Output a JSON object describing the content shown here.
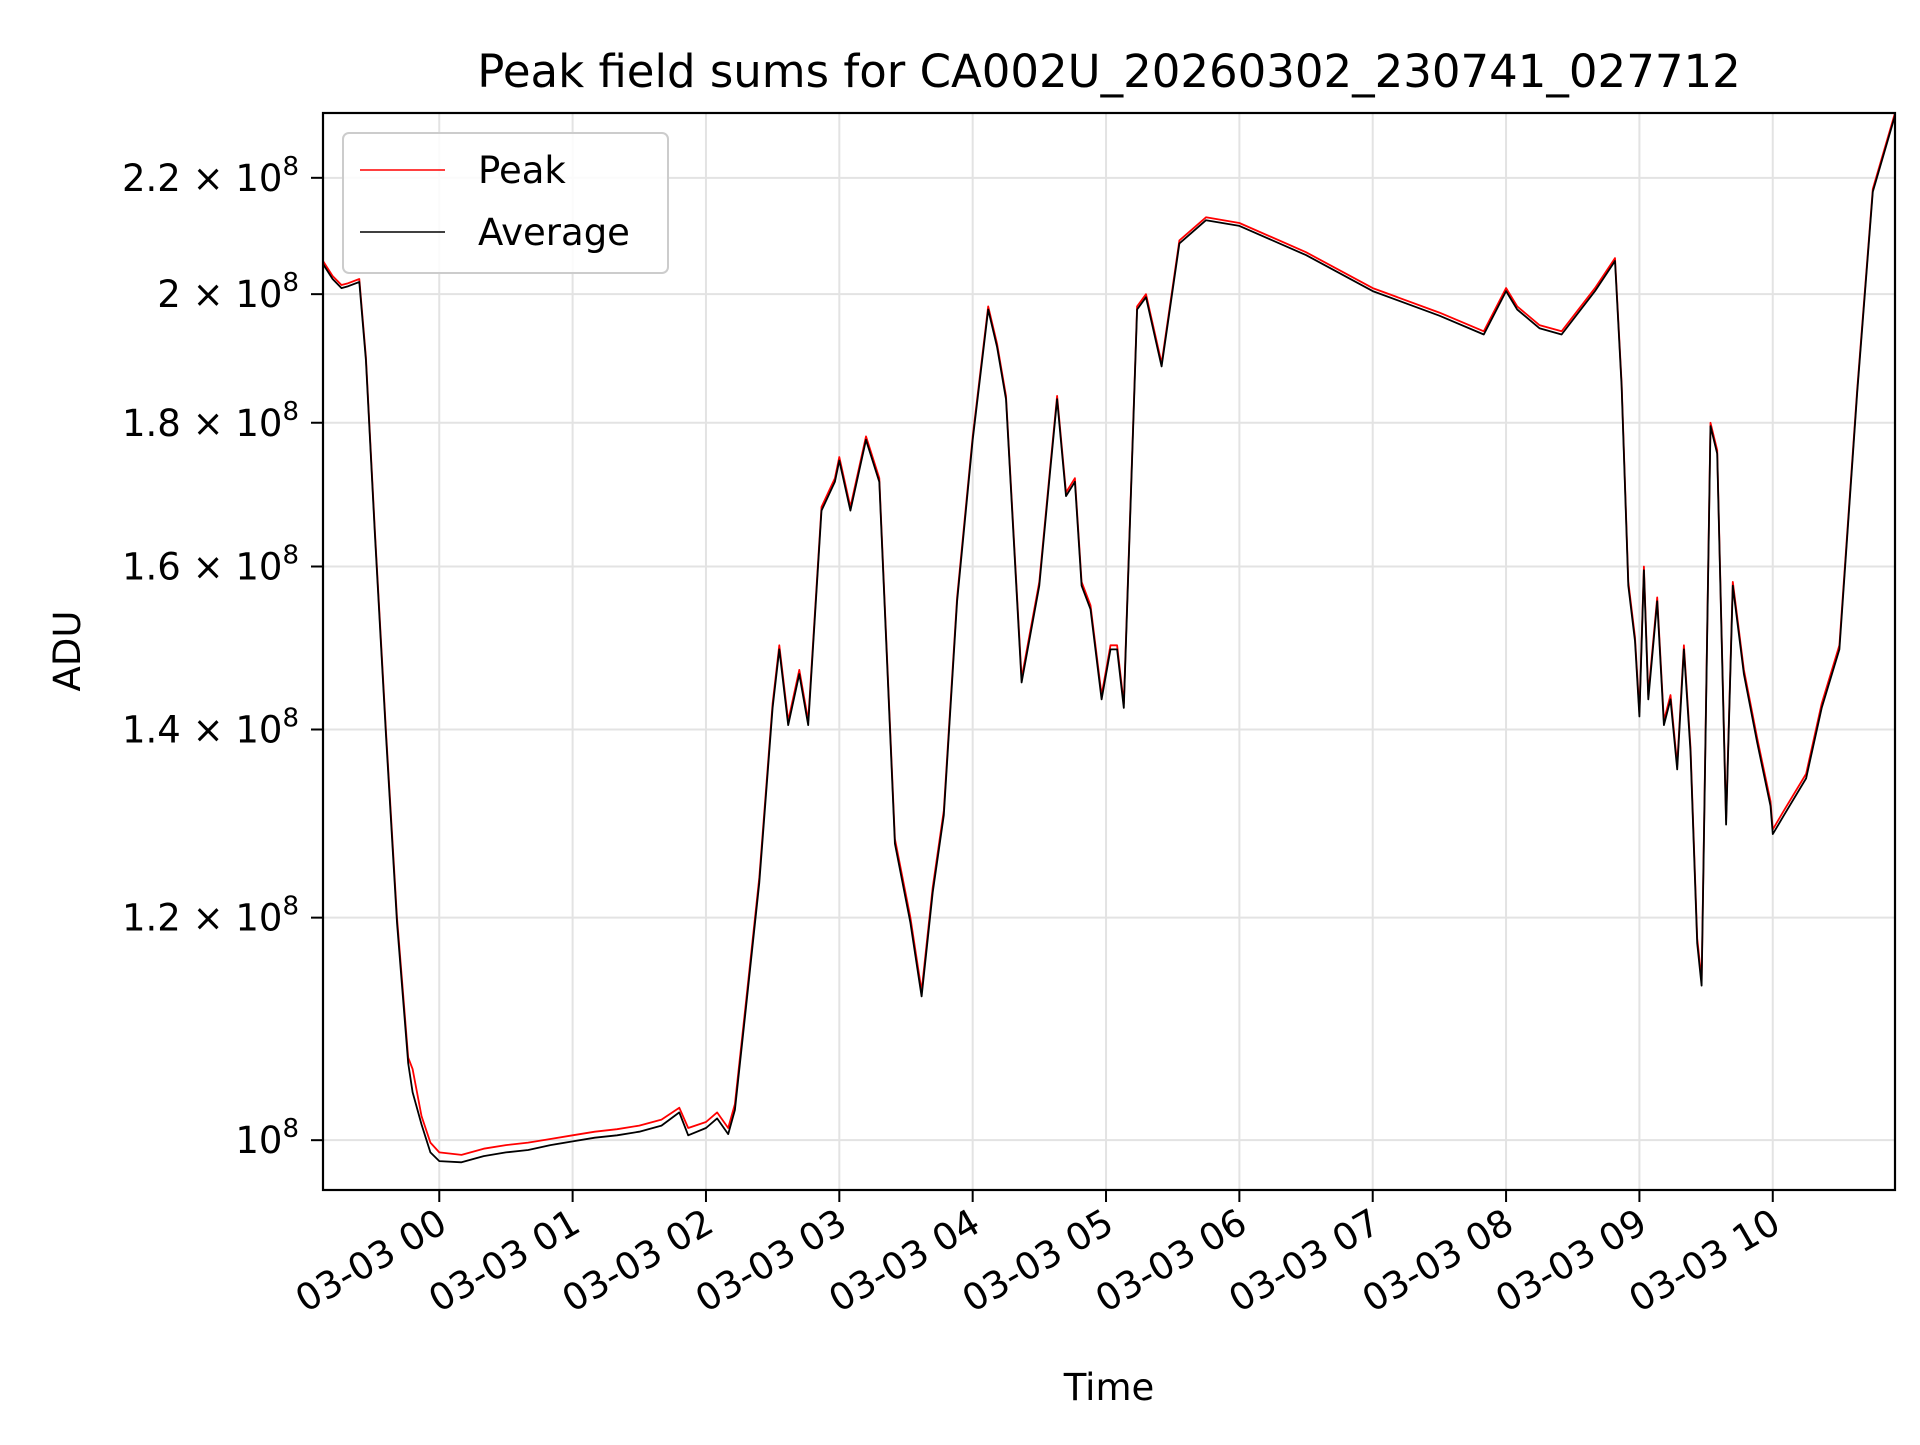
{
  "chart_data": {
    "type": "line",
    "title": "Peak field sums for CA002U_20260302_230741_027712",
    "xlabel": "Time",
    "ylabel": "ADU",
    "y_scale": "log",
    "ylim": [
      96000000,
      232000000
    ],
    "xlim": [
      "2026-03-02 23:07:41",
      "2026-03-03 10:55:00"
    ],
    "grid": true,
    "legend_position": "top-left",
    "x_ticks": [
      {
        "t": "2026-03-03 00:00",
        "label": "03-03 00"
      },
      {
        "t": "2026-03-03 01:00",
        "label": "03-03 01"
      },
      {
        "t": "2026-03-03 02:00",
        "label": "03-03 02"
      },
      {
        "t": "2026-03-03 03:00",
        "label": "03-03 03"
      },
      {
        "t": "2026-03-03 04:00",
        "label": "03-03 04"
      },
      {
        "t": "2026-03-03 05:00",
        "label": "03-03 05"
      },
      {
        "t": "2026-03-03 06:00",
        "label": "03-03 06"
      },
      {
        "t": "2026-03-03 07:00",
        "label": "03-03 07"
      },
      {
        "t": "2026-03-03 08:00",
        "label": "03-03 08"
      },
      {
        "t": "2026-03-03 09:00",
        "label": "03-03 09"
      },
      {
        "t": "2026-03-03 10:00",
        "label": "03-03 10"
      }
    ],
    "y_ticks": [
      {
        "v": 100000000,
        "mant": "",
        "label": "10",
        "exp": "8"
      },
      {
        "v": 120000000,
        "mant": "1.2 × ",
        "label": "10",
        "exp": "8"
      },
      {
        "v": 140000000,
        "mant": "1.4 × ",
        "label": "10",
        "exp": "8"
      },
      {
        "v": 160000000,
        "mant": "1.6 × ",
        "label": "10",
        "exp": "8"
      },
      {
        "v": 180000000,
        "mant": "1.8 × ",
        "label": "10",
        "exp": "8"
      },
      {
        "v": 200000000,
        "mant": "2 × ",
        "label": "10",
        "exp": "8"
      },
      {
        "v": 220000000,
        "mant": "2.2 × ",
        "label": "10",
        "exp": "8"
      }
    ],
    "series": [
      {
        "name": "Peak",
        "color": "#ff0000",
        "points": [
          [
            "2026-03-02 23:07:41",
            205500000
          ],
          [
            "2026-03-02 23:12",
            203000000
          ],
          [
            "2026-03-02 23:16",
            201500000
          ],
          [
            "2026-03-02 23:19",
            201800000
          ],
          [
            "2026-03-02 23:24",
            202500000
          ],
          [
            "2026-03-02 23:27",
            190000000
          ],
          [
            "2026-03-02 23:31",
            165000000
          ],
          [
            "2026-03-02 23:36",
            140000000
          ],
          [
            "2026-03-02 23:41",
            120000000
          ],
          [
            "2026-03-02 23:46",
            107000000
          ],
          [
            "2026-03-02 23:48",
            106000000
          ],
          [
            "2026-03-02 23:52",
            102000000
          ],
          [
            "2026-03-02 23:56",
            99800000
          ],
          [
            "2026-03-03 00:00",
            99000000
          ],
          [
            "2026-03-03 00:10",
            98800000
          ],
          [
            "2026-03-03 00:20",
            99300000
          ],
          [
            "2026-03-03 00:30",
            99600000
          ],
          [
            "2026-03-03 00:40",
            99800000
          ],
          [
            "2026-03-03 00:50",
            100100000
          ],
          [
            "2026-03-03 01:00",
            100400000
          ],
          [
            "2026-03-03 01:10",
            100700000
          ],
          [
            "2026-03-03 01:20",
            100900000
          ],
          [
            "2026-03-03 01:30",
            101200000
          ],
          [
            "2026-03-03 01:40",
            101700000
          ],
          [
            "2026-03-03 01:48",
            102700000
          ],
          [
            "2026-03-03 01:52",
            101000000
          ],
          [
            "2026-03-03 02:00",
            101500000
          ],
          [
            "2026-03-03 02:05",
            102300000
          ],
          [
            "2026-03-03 02:10",
            101000000
          ],
          [
            "2026-03-03 02:13",
            103000000
          ],
          [
            "2026-03-03 02:18",
            112000000
          ],
          [
            "2026-03-03 02:24",
            124000000
          ],
          [
            "2026-03-03 02:30",
            143000000
          ],
          [
            "2026-03-03 02:33",
            150000000
          ],
          [
            "2026-03-03 02:37",
            141000000
          ],
          [
            "2026-03-03 02:42",
            147000000
          ],
          [
            "2026-03-03 02:46",
            141000000
          ],
          [
            "2026-03-03 02:52",
            168000000
          ],
          [
            "2026-03-03 02:58",
            172000000
          ],
          [
            "2026-03-03 03:00",
            175000000
          ],
          [
            "2026-03-03 03:05",
            168000000
          ],
          [
            "2026-03-03 03:12",
            178000000
          ],
          [
            "2026-03-03 03:18",
            172000000
          ],
          [
            "2026-03-03 03:25",
            128000000
          ],
          [
            "2026-03-03 03:32",
            120000000
          ],
          [
            "2026-03-03 03:37",
            113000000
          ],
          [
            "2026-03-03 03:42",
            123000000
          ],
          [
            "2026-03-03 03:47",
            131000000
          ],
          [
            "2026-03-03 03:53",
            156000000
          ],
          [
            "2026-03-03 04:00",
            178000000
          ],
          [
            "2026-03-03 04:07",
            198000000
          ],
          [
            "2026-03-03 04:11",
            192000000
          ],
          [
            "2026-03-03 04:15",
            184000000
          ],
          [
            "2026-03-03 04:22",
            146000000
          ],
          [
            "2026-03-03 04:30",
            158000000
          ],
          [
            "2026-03-03 04:35",
            174000000
          ],
          [
            "2026-03-03 04:38",
            184000000
          ],
          [
            "2026-03-03 04:42",
            170000000
          ],
          [
            "2026-03-03 04:46",
            172000000
          ],
          [
            "2026-03-03 04:49",
            158000000
          ],
          [
            "2026-03-03 04:53",
            155000000
          ],
          [
            "2026-03-03 04:58",
            144000000
          ],
          [
            "2026-03-03 05:02",
            150000000
          ],
          [
            "2026-03-03 05:05",
            150000000
          ],
          [
            "2026-03-03 05:08",
            143000000
          ],
          [
            "2026-03-03 05:14",
            198000000
          ],
          [
            "2026-03-03 05:18",
            200000000
          ],
          [
            "2026-03-03 05:25",
            189000000
          ],
          [
            "2026-03-03 05:33",
            209000000
          ],
          [
            "2026-03-03 05:45",
            213000000
          ],
          [
            "2026-03-03 06:00",
            212000000
          ],
          [
            "2026-03-03 06:30",
            207000000
          ],
          [
            "2026-03-03 07:00",
            201000000
          ],
          [
            "2026-03-03 07:30",
            197000000
          ],
          [
            "2026-03-03 07:50",
            194000000
          ],
          [
            "2026-03-03 08:00",
            201000000
          ],
          [
            "2026-03-03 08:05",
            198000000
          ],
          [
            "2026-03-03 08:15",
            195000000
          ],
          [
            "2026-03-03 08:25",
            194000000
          ],
          [
            "2026-03-03 08:40",
            201000000
          ],
          [
            "2026-03-03 08:49",
            206000000
          ],
          [
            "2026-03-03 08:52",
            186000000
          ],
          [
            "2026-03-03 08:55",
            158000000
          ],
          [
            "2026-03-03 08:58",
            151000000
          ],
          [
            "2026-03-03 09:00",
            142000000
          ],
          [
            "2026-03-03 09:02",
            160000000
          ],
          [
            "2026-03-03 09:04",
            144000000
          ],
          [
            "2026-03-03 09:08",
            156000000
          ],
          [
            "2026-03-03 09:11",
            141000000
          ],
          [
            "2026-03-03 09:14",
            144000000
          ],
          [
            "2026-03-03 09:17",
            136000000
          ],
          [
            "2026-03-03 09:20",
            150000000
          ],
          [
            "2026-03-03 09:23",
            138000000
          ],
          [
            "2026-03-03 09:26",
            118000000
          ],
          [
            "2026-03-03 09:28",
            114000000
          ],
          [
            "2026-03-03 09:32",
            180000000
          ],
          [
            "2026-03-03 09:35",
            176000000
          ],
          [
            "2026-03-03 09:39",
            130000000
          ],
          [
            "2026-03-03 09:42",
            158000000
          ],
          [
            "2026-03-03 09:47",
            147000000
          ],
          [
            "2026-03-03 09:53",
            139000000
          ],
          [
            "2026-03-03 09:59",
            132000000
          ],
          [
            "2026-03-03 10:00",
            129000000
          ],
          [
            "2026-03-03 10:05",
            131000000
          ],
          [
            "2026-03-03 10:15",
            135000000
          ],
          [
            "2026-03-03 10:22",
            143000000
          ],
          [
            "2026-03-03 10:30",
            150000000
          ],
          [
            "2026-03-03 10:38",
            185000000
          ],
          [
            "2026-03-03 10:45",
            218000000
          ],
          [
            "2026-03-03 10:55",
            232000000
          ]
        ]
      },
      {
        "name": "Average",
        "color": "#000000",
        "points": [
          [
            "2026-03-02 23:07:41",
            205000000
          ],
          [
            "2026-03-02 23:12",
            202500000
          ],
          [
            "2026-03-02 23:16",
            201000000
          ],
          [
            "2026-03-02 23:19",
            201300000
          ],
          [
            "2026-03-02 23:24",
            202000000
          ],
          [
            "2026-03-02 23:27",
            189500000
          ],
          [
            "2026-03-02 23:31",
            164500000
          ],
          [
            "2026-03-02 23:36",
            139500000
          ],
          [
            "2026-03-02 23:41",
            119500000
          ],
          [
            "2026-03-02 23:46",
            106500000
          ],
          [
            "2026-03-02 23:48",
            104000000
          ],
          [
            "2026-03-02 23:52",
            101300000
          ],
          [
            "2026-03-02 23:56",
            99000000
          ],
          [
            "2026-03-03 00:00",
            98300000
          ],
          [
            "2026-03-03 00:10",
            98200000
          ],
          [
            "2026-03-03 00:20",
            98700000
          ],
          [
            "2026-03-03 00:30",
            99000000
          ],
          [
            "2026-03-03 00:40",
            99200000
          ],
          [
            "2026-03-03 00:50",
            99600000
          ],
          [
            "2026-03-03 01:00",
            99900000
          ],
          [
            "2026-03-03 01:10",
            100200000
          ],
          [
            "2026-03-03 01:20",
            100400000
          ],
          [
            "2026-03-03 01:30",
            100700000
          ],
          [
            "2026-03-03 01:40",
            101200000
          ],
          [
            "2026-03-03 01:48",
            102300000
          ],
          [
            "2026-03-03 01:52",
            100400000
          ],
          [
            "2026-03-03 02:00",
            101000000
          ],
          [
            "2026-03-03 02:05",
            101800000
          ],
          [
            "2026-03-03 02:10",
            100500000
          ],
          [
            "2026-03-03 02:13",
            102500000
          ],
          [
            "2026-03-03 02:18",
            111500000
          ],
          [
            "2026-03-03 02:24",
            123500000
          ],
          [
            "2026-03-03 02:30",
            142500000
          ],
          [
            "2026-03-03 02:33",
            149500000
          ],
          [
            "2026-03-03 02:37",
            140500000
          ],
          [
            "2026-03-03 02:42",
            146500000
          ],
          [
            "2026-03-03 02:46",
            140500000
          ],
          [
            "2026-03-03 02:52",
            167500000
          ],
          [
            "2026-03-03 02:58",
            171500000
          ],
          [
            "2026-03-03 03:00",
            174500000
          ],
          [
            "2026-03-03 03:05",
            167500000
          ],
          [
            "2026-03-03 03:12",
            177500000
          ],
          [
            "2026-03-03 03:18",
            171500000
          ],
          [
            "2026-03-03 03:25",
            127500000
          ],
          [
            "2026-03-03 03:32",
            119500000
          ],
          [
            "2026-03-03 03:37",
            112500000
          ],
          [
            "2026-03-03 03:42",
            122500000
          ],
          [
            "2026-03-03 03:47",
            130500000
          ],
          [
            "2026-03-03 03:53",
            155500000
          ],
          [
            "2026-03-03 04:00",
            177500000
          ],
          [
            "2026-03-03 04:07",
            197500000
          ],
          [
            "2026-03-03 04:11",
            191500000
          ],
          [
            "2026-03-03 04:15",
            183500000
          ],
          [
            "2026-03-03 04:22",
            145500000
          ],
          [
            "2026-03-03 04:30",
            157500000
          ],
          [
            "2026-03-03 04:35",
            173500000
          ],
          [
            "2026-03-03 04:38",
            183500000
          ],
          [
            "2026-03-03 04:42",
            169500000
          ],
          [
            "2026-03-03 04:46",
            171500000
          ],
          [
            "2026-03-03 04:49",
            157500000
          ],
          [
            "2026-03-03 04:53",
            154500000
          ],
          [
            "2026-03-03 04:58",
            143500000
          ],
          [
            "2026-03-03 05:02",
            149500000
          ],
          [
            "2026-03-03 05:05",
            149500000
          ],
          [
            "2026-03-03 05:08",
            142500000
          ],
          [
            "2026-03-03 05:14",
            197500000
          ],
          [
            "2026-03-03 05:18",
            199500000
          ],
          [
            "2026-03-03 05:25",
            188500000
          ],
          [
            "2026-03-03 05:33",
            208500000
          ],
          [
            "2026-03-03 05:45",
            212500000
          ],
          [
            "2026-03-03 06:00",
            211500000
          ],
          [
            "2026-03-03 06:30",
            206500000
          ],
          [
            "2026-03-03 07:00",
            200500000
          ],
          [
            "2026-03-03 07:30",
            196500000
          ],
          [
            "2026-03-03 07:50",
            193500000
          ],
          [
            "2026-03-03 08:00",
            200500000
          ],
          [
            "2026-03-03 08:05",
            197500000
          ],
          [
            "2026-03-03 08:15",
            194500000
          ],
          [
            "2026-03-03 08:25",
            193500000
          ],
          [
            "2026-03-03 08:40",
            200500000
          ],
          [
            "2026-03-03 08:49",
            205500000
          ],
          [
            "2026-03-03 08:52",
            185500000
          ],
          [
            "2026-03-03 08:55",
            157500000
          ],
          [
            "2026-03-03 08:58",
            150500000
          ],
          [
            "2026-03-03 09:00",
            141500000
          ],
          [
            "2026-03-03 09:02",
            159500000
          ],
          [
            "2026-03-03 09:04",
            143500000
          ],
          [
            "2026-03-03 09:08",
            155500000
          ],
          [
            "2026-03-03 09:11",
            140500000
          ],
          [
            "2026-03-03 09:14",
            143500000
          ],
          [
            "2026-03-03 09:17",
            135500000
          ],
          [
            "2026-03-03 09:20",
            149500000
          ],
          [
            "2026-03-03 09:23",
            137500000
          ],
          [
            "2026-03-03 09:26",
            117500000
          ],
          [
            "2026-03-03 09:28",
            113500000
          ],
          [
            "2026-03-03 09:32",
            179500000
          ],
          [
            "2026-03-03 09:35",
            175500000
          ],
          [
            "2026-03-03 09:39",
            129500000
          ],
          [
            "2026-03-03 09:42",
            157500000
          ],
          [
            "2026-03-03 09:47",
            146500000
          ],
          [
            "2026-03-03 09:53",
            138500000
          ],
          [
            "2026-03-03 09:59",
            131500000
          ],
          [
            "2026-03-03 10:00",
            128500000
          ],
          [
            "2026-03-03 10:05",
            130500000
          ],
          [
            "2026-03-03 10:15",
            134500000
          ],
          [
            "2026-03-03 10:22",
            142500000
          ],
          [
            "2026-03-03 10:30",
            149500000
          ],
          [
            "2026-03-03 10:38",
            184500000
          ],
          [
            "2026-03-03 10:45",
            217500000
          ],
          [
            "2026-03-03 10:55",
            231500000
          ]
        ]
      }
    ]
  }
}
